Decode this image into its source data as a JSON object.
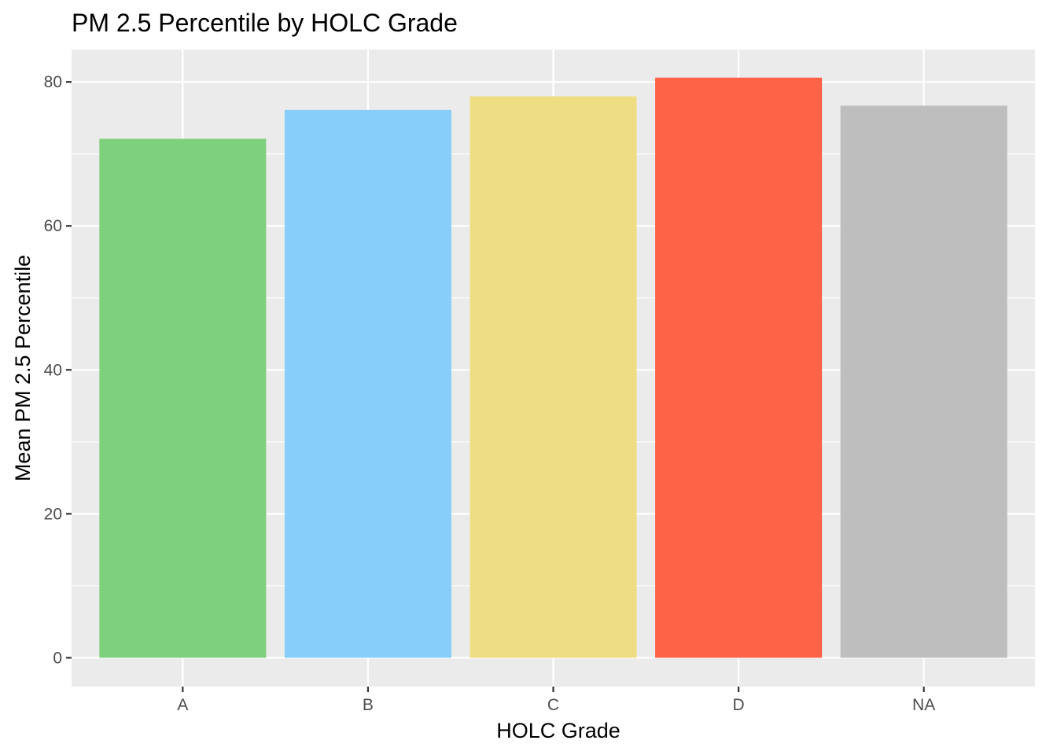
{
  "chart_data": {
    "type": "bar",
    "title": "PM 2.5 Percentile by HOLC Grade",
    "xlabel": "HOLC Grade",
    "ylabel": "Mean PM 2.5 Percentile",
    "categories": [
      "A",
      "B",
      "C",
      "D",
      "NA"
    ],
    "values": [
      72.1,
      76.1,
      78.0,
      80.6,
      76.7
    ],
    "colors": [
      "#7FD07D",
      "#87CEFA",
      "#EEDD82",
      "#FF6347",
      "#BEBEBE"
    ],
    "ylim": [
      -4,
      84.5
    ],
    "yticks": [
      0,
      20,
      40,
      60,
      80
    ],
    "ytick_labels": [
      "0",
      "20",
      "40",
      "60",
      "80"
    ],
    "grid": true,
    "legend": "none",
    "panel_background": "#EBEBEB",
    "grid_color": "#FFFFFF"
  }
}
